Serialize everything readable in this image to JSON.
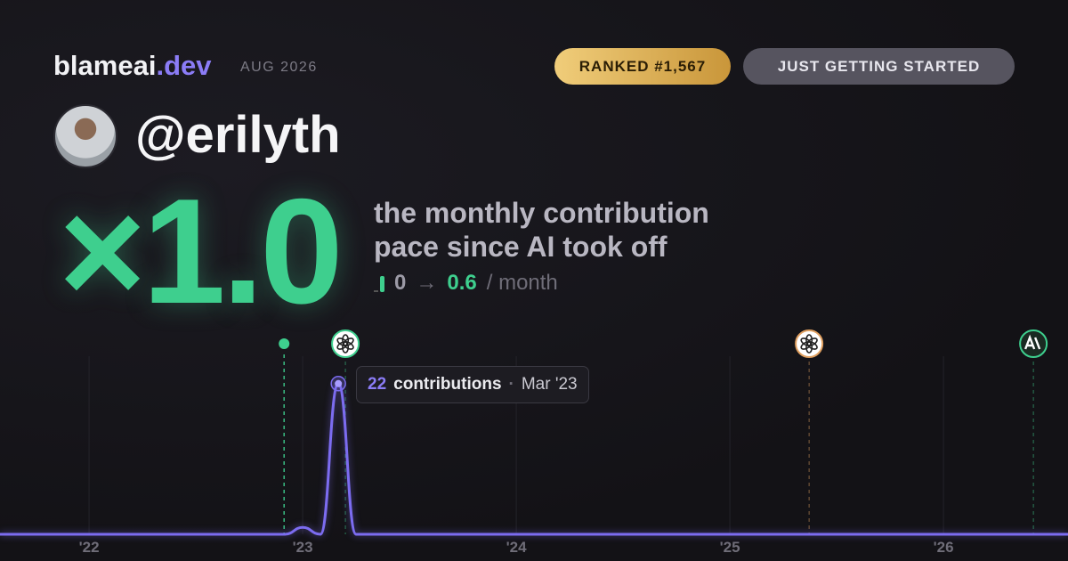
{
  "header": {
    "brand": "blameai",
    "tld": ".dev",
    "date": "AUG 2026",
    "badges": [
      "RANKED #1,567",
      "JUST GETTING STARTED"
    ]
  },
  "user": {
    "handle": "@erilyth"
  },
  "hero": {
    "multiplier": "×1.0",
    "lines": [
      "the monthly contribution",
      "pace since AI took off"
    ],
    "pace": {
      "before": "0",
      "arrow": "→",
      "after": "0.6",
      "unit": "/ month"
    }
  },
  "chart_data": {
    "type": "line",
    "color": "#7c6cf0",
    "x": [
      2021.583,
      2022.917,
      2023.0,
      2023.083,
      2023.167,
      2023.25,
      2023.333,
      2026.583
    ],
    "values": [
      0,
      0,
      1,
      0,
      22,
      0,
      0,
      0
    ],
    "xlim": [
      2021.583,
      2026.583
    ],
    "ylim": [
      0,
      26
    ],
    "xticks": [
      {
        "value": 2022,
        "label": "'22"
      },
      {
        "value": 2023,
        "label": "'23"
      },
      {
        "value": 2024,
        "label": "'24"
      },
      {
        "value": 2025,
        "label": "'25"
      },
      {
        "value": 2026,
        "label": "'26"
      }
    ],
    "grid": true,
    "events": [
      {
        "x": 2022.913,
        "color": "#3ecf8e"
      },
      {
        "x": 2023.2,
        "color": "#3ecf8e"
      },
      {
        "x": 2025.371,
        "color": "#e0a060"
      },
      {
        "x": 2026.421,
        "color": "#3ecf8e"
      }
    ],
    "tooltip": {
      "unit": "contributions",
      "date": "Mar '23"
    }
  }
}
